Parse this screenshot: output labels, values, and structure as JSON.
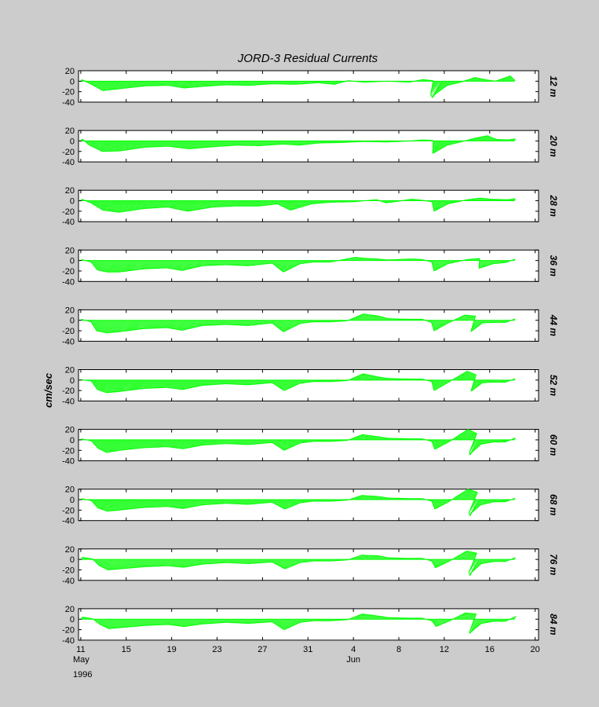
{
  "chart_data": {
    "type": "line",
    "title": "JORD-3  Residual Currents",
    "ylabel": "cm/sec",
    "xlabel": "",
    "ylim": [
      -40,
      20
    ],
    "yticks": [
      20,
      0,
      -20,
      -40
    ],
    "xlim": [
      10.8,
      20.4
    ],
    "xticks": [
      {
        "day": 11,
        "label": "11",
        "sublabel": "May",
        "year": "1996"
      },
      {
        "day": 15,
        "label": "15"
      },
      {
        "day": 19,
        "label": "19"
      },
      {
        "day": 23,
        "label": "23"
      },
      {
        "day": 27,
        "label": "27"
      },
      {
        "day": 31,
        "label": "31"
      },
      {
        "day": 4,
        "label": "4",
        "sublabel": "Jun"
      },
      {
        "day": 8,
        "label": "8"
      },
      {
        "day": 12,
        "label": "12"
      },
      {
        "day": 16,
        "label": "16"
      },
      {
        "day": 20,
        "label": "20"
      }
    ],
    "line_color": "#00ff00",
    "grid": false,
    "panels": [
      {
        "depth": "12 m",
        "envelope_x": [
          11,
          12,
          13.5,
          15,
          17,
          19,
          20.5,
          22,
          24,
          26,
          28,
          30,
          32,
          33.5,
          34.5,
          36,
          38,
          40,
          41,
          42,
          42.7,
          43.5,
          44.5,
          45.5,
          46.5,
          47.5,
          48.5,
          49.2
        ],
        "envelope_y": [
          3,
          -5,
          -18,
          -14,
          -9,
          -8,
          -13,
          -10,
          -7,
          -8,
          -5,
          -6,
          -3,
          -6,
          1,
          -2,
          0,
          -2,
          3,
          1,
          -32,
          -8,
          -2,
          7,
          3,
          0,
          10,
          1
        ]
      },
      {
        "depth": "20 m",
        "envelope_x": [
          11,
          12,
          13.5,
          15,
          17,
          19,
          21,
          23,
          25,
          27,
          29,
          30.5,
          32,
          34,
          36,
          38,
          40,
          41,
          42,
          42.7,
          43.5,
          44.5,
          45.5,
          46.5,
          47.5,
          48.5,
          49.2
        ],
        "envelope_y": [
          4,
          -8,
          -20,
          -19,
          -12,
          -10,
          -15,
          -11,
          -8,
          -9,
          -6,
          -8,
          -4,
          -3,
          -1,
          -2,
          0,
          2,
          1,
          -24,
          -8,
          -2,
          5,
          10,
          3,
          2,
          4
        ]
      },
      {
        "depth": "28 m",
        "envelope_x": [
          11,
          12,
          13.5,
          15,
          17,
          19,
          21,
          23,
          25,
          27,
          28.5,
          30,
          31.5,
          33,
          35,
          37,
          38,
          39,
          40,
          41,
          42,
          42.7,
          43.5,
          45,
          46,
          47,
          48.5,
          49.2
        ],
        "envelope_y": [
          3,
          -4,
          -18,
          -22,
          -15,
          -12,
          -20,
          -12,
          -10,
          -10,
          -6,
          -18,
          -6,
          -3,
          -2,
          2,
          -4,
          -1,
          3,
          1,
          -2,
          -20,
          -6,
          2,
          5,
          3,
          2,
          4
        ]
      },
      {
        "depth": "36 m",
        "envelope_x": [
          11,
          12,
          13,
          14,
          15,
          17,
          19,
          20.5,
          22,
          24,
          26,
          28,
          29.5,
          30.5,
          31.5,
          33,
          35,
          36,
          37,
          38,
          40,
          41,
          42,
          42.7,
          43.5,
          45,
          46,
          46.5,
          47.5,
          48.5,
          49.2
        ],
        "envelope_y": [
          2,
          -3,
          -18,
          -22,
          -22,
          -16,
          -14,
          -19,
          -10,
          -8,
          -10,
          -5,
          -22,
          -6,
          -3,
          -3,
          6,
          4,
          3,
          1,
          3,
          2,
          -3,
          -20,
          -6,
          2,
          4,
          -15,
          -6,
          -4,
          3
        ]
      },
      {
        "depth": "44 m",
        "envelope_x": [
          11,
          12,
          13,
          14,
          15,
          17,
          19,
          20.5,
          22,
          24,
          26,
          28,
          29.5,
          30.5,
          31.5,
          33,
          34.5,
          35.5,
          37,
          38,
          40,
          41,
          42,
          42.7,
          43.5,
          44.5,
          45.5,
          46,
          46.5,
          47.5,
          48.5,
          49.2
        ],
        "envelope_y": [
          2,
          -3,
          -20,
          -24,
          -22,
          -16,
          -14,
          -19,
          -10,
          -8,
          -10,
          -5,
          -22,
          -6,
          -3,
          -3,
          -1,
          12,
          8,
          3,
          2,
          2,
          -4,
          -20,
          -5,
          10,
          8,
          -22,
          -5,
          -4,
          -4,
          3
        ]
      },
      {
        "depth": "52 m",
        "envelope_x": [
          11,
          12,
          13,
          14,
          15,
          17,
          19,
          20.5,
          22,
          24,
          26,
          28,
          29.5,
          30.5,
          31.5,
          33,
          34.5,
          35.5,
          37,
          38,
          40,
          41,
          42,
          42.7,
          43.5,
          44.5,
          45.5,
          46,
          46.5,
          47.5,
          48.5,
          49.2
        ],
        "envelope_y": [
          1,
          -2,
          -18,
          -24,
          -22,
          -16,
          -14,
          -18,
          -10,
          -7,
          -9,
          -5,
          -20,
          -6,
          -3,
          -3,
          -1,
          12,
          6,
          3,
          2,
          2,
          -3,
          -20,
          -4,
          17,
          10,
          -22,
          -5,
          -4,
          -4,
          3
        ]
      },
      {
        "depth": "60 m",
        "envelope_x": [
          11,
          12,
          13,
          14,
          15,
          17,
          19,
          20.5,
          22,
          24,
          26,
          28,
          29.5,
          30.5,
          31.5,
          33,
          34.5,
          35.5,
          37,
          38,
          40,
          41,
          42,
          42.7,
          43.5,
          44.5,
          45.5,
          46,
          46.5,
          47.5,
          48.5,
          49.2
        ],
        "envelope_y": [
          2,
          -2,
          -16,
          -24,
          -20,
          -15,
          -13,
          -17,
          -10,
          -7,
          -9,
          -5,
          -20,
          -6,
          -3,
          -3,
          -1,
          10,
          6,
          3,
          2,
          2,
          -3,
          -18,
          -4,
          20,
          12,
          -30,
          -8,
          -4,
          -4,
          4
        ]
      },
      {
        "depth": "68 m",
        "envelope_x": [
          11,
          12,
          13,
          14,
          15,
          17,
          19,
          20.5,
          22,
          24,
          26,
          28,
          29.5,
          30.5,
          31.5,
          33,
          34.5,
          35.5,
          37,
          38,
          40,
          41,
          42,
          42.7,
          43.5,
          44.5,
          45.5,
          46,
          46.5,
          47.5,
          48.5,
          49.2
        ],
        "envelope_y": [
          2,
          -2,
          -16,
          -22,
          -20,
          -15,
          -13,
          -17,
          -10,
          -7,
          -9,
          -5,
          -18,
          -6,
          -3,
          -3,
          -1,
          8,
          6,
          3,
          2,
          2,
          -3,
          -18,
          -4,
          20,
          14,
          -32,
          -10,
          -4,
          -4,
          3
        ]
      },
      {
        "depth": "76 m",
        "envelope_x": [
          11,
          12,
          13,
          14,
          15,
          17,
          19,
          20.5,
          22,
          24,
          26,
          28,
          29.5,
          30.5,
          31.5,
          33,
          34.5,
          35.5,
          37,
          38,
          40,
          41,
          42,
          42.7,
          43.5,
          44.5,
          45.5,
          46,
          46.5,
          47.5,
          48.5,
          49.2
        ],
        "envelope_y": [
          4,
          1,
          -12,
          -20,
          -18,
          -14,
          -12,
          -15,
          -9,
          -6,
          -8,
          -5,
          -18,
          -6,
          -3,
          -3,
          -1,
          8,
          7,
          3,
          2,
          2,
          -3,
          -16,
          -4,
          16,
          12,
          -32,
          -8,
          -4,
          -4,
          4
        ]
      },
      {
        "depth": "84 m",
        "envelope_x": [
          11,
          12,
          13,
          14,
          15,
          17,
          19,
          20.5,
          22,
          24,
          26,
          28,
          29.5,
          30.5,
          31.5,
          33,
          34.5,
          35.5,
          37,
          38,
          40,
          41,
          42,
          42.7,
          43.5,
          44.5,
          45.5,
          46,
          46.5,
          47.5,
          48.5,
          49.2
        ],
        "envelope_y": [
          4,
          1,
          -10,
          -18,
          -16,
          -12,
          -10,
          -14,
          -9,
          -6,
          -8,
          -5,
          -20,
          -6,
          -3,
          -3,
          -1,
          10,
          6,
          3,
          2,
          2,
          -3,
          -14,
          -4,
          12,
          10,
          -28,
          -8,
          -4,
          -4,
          6
        ]
      }
    ]
  }
}
